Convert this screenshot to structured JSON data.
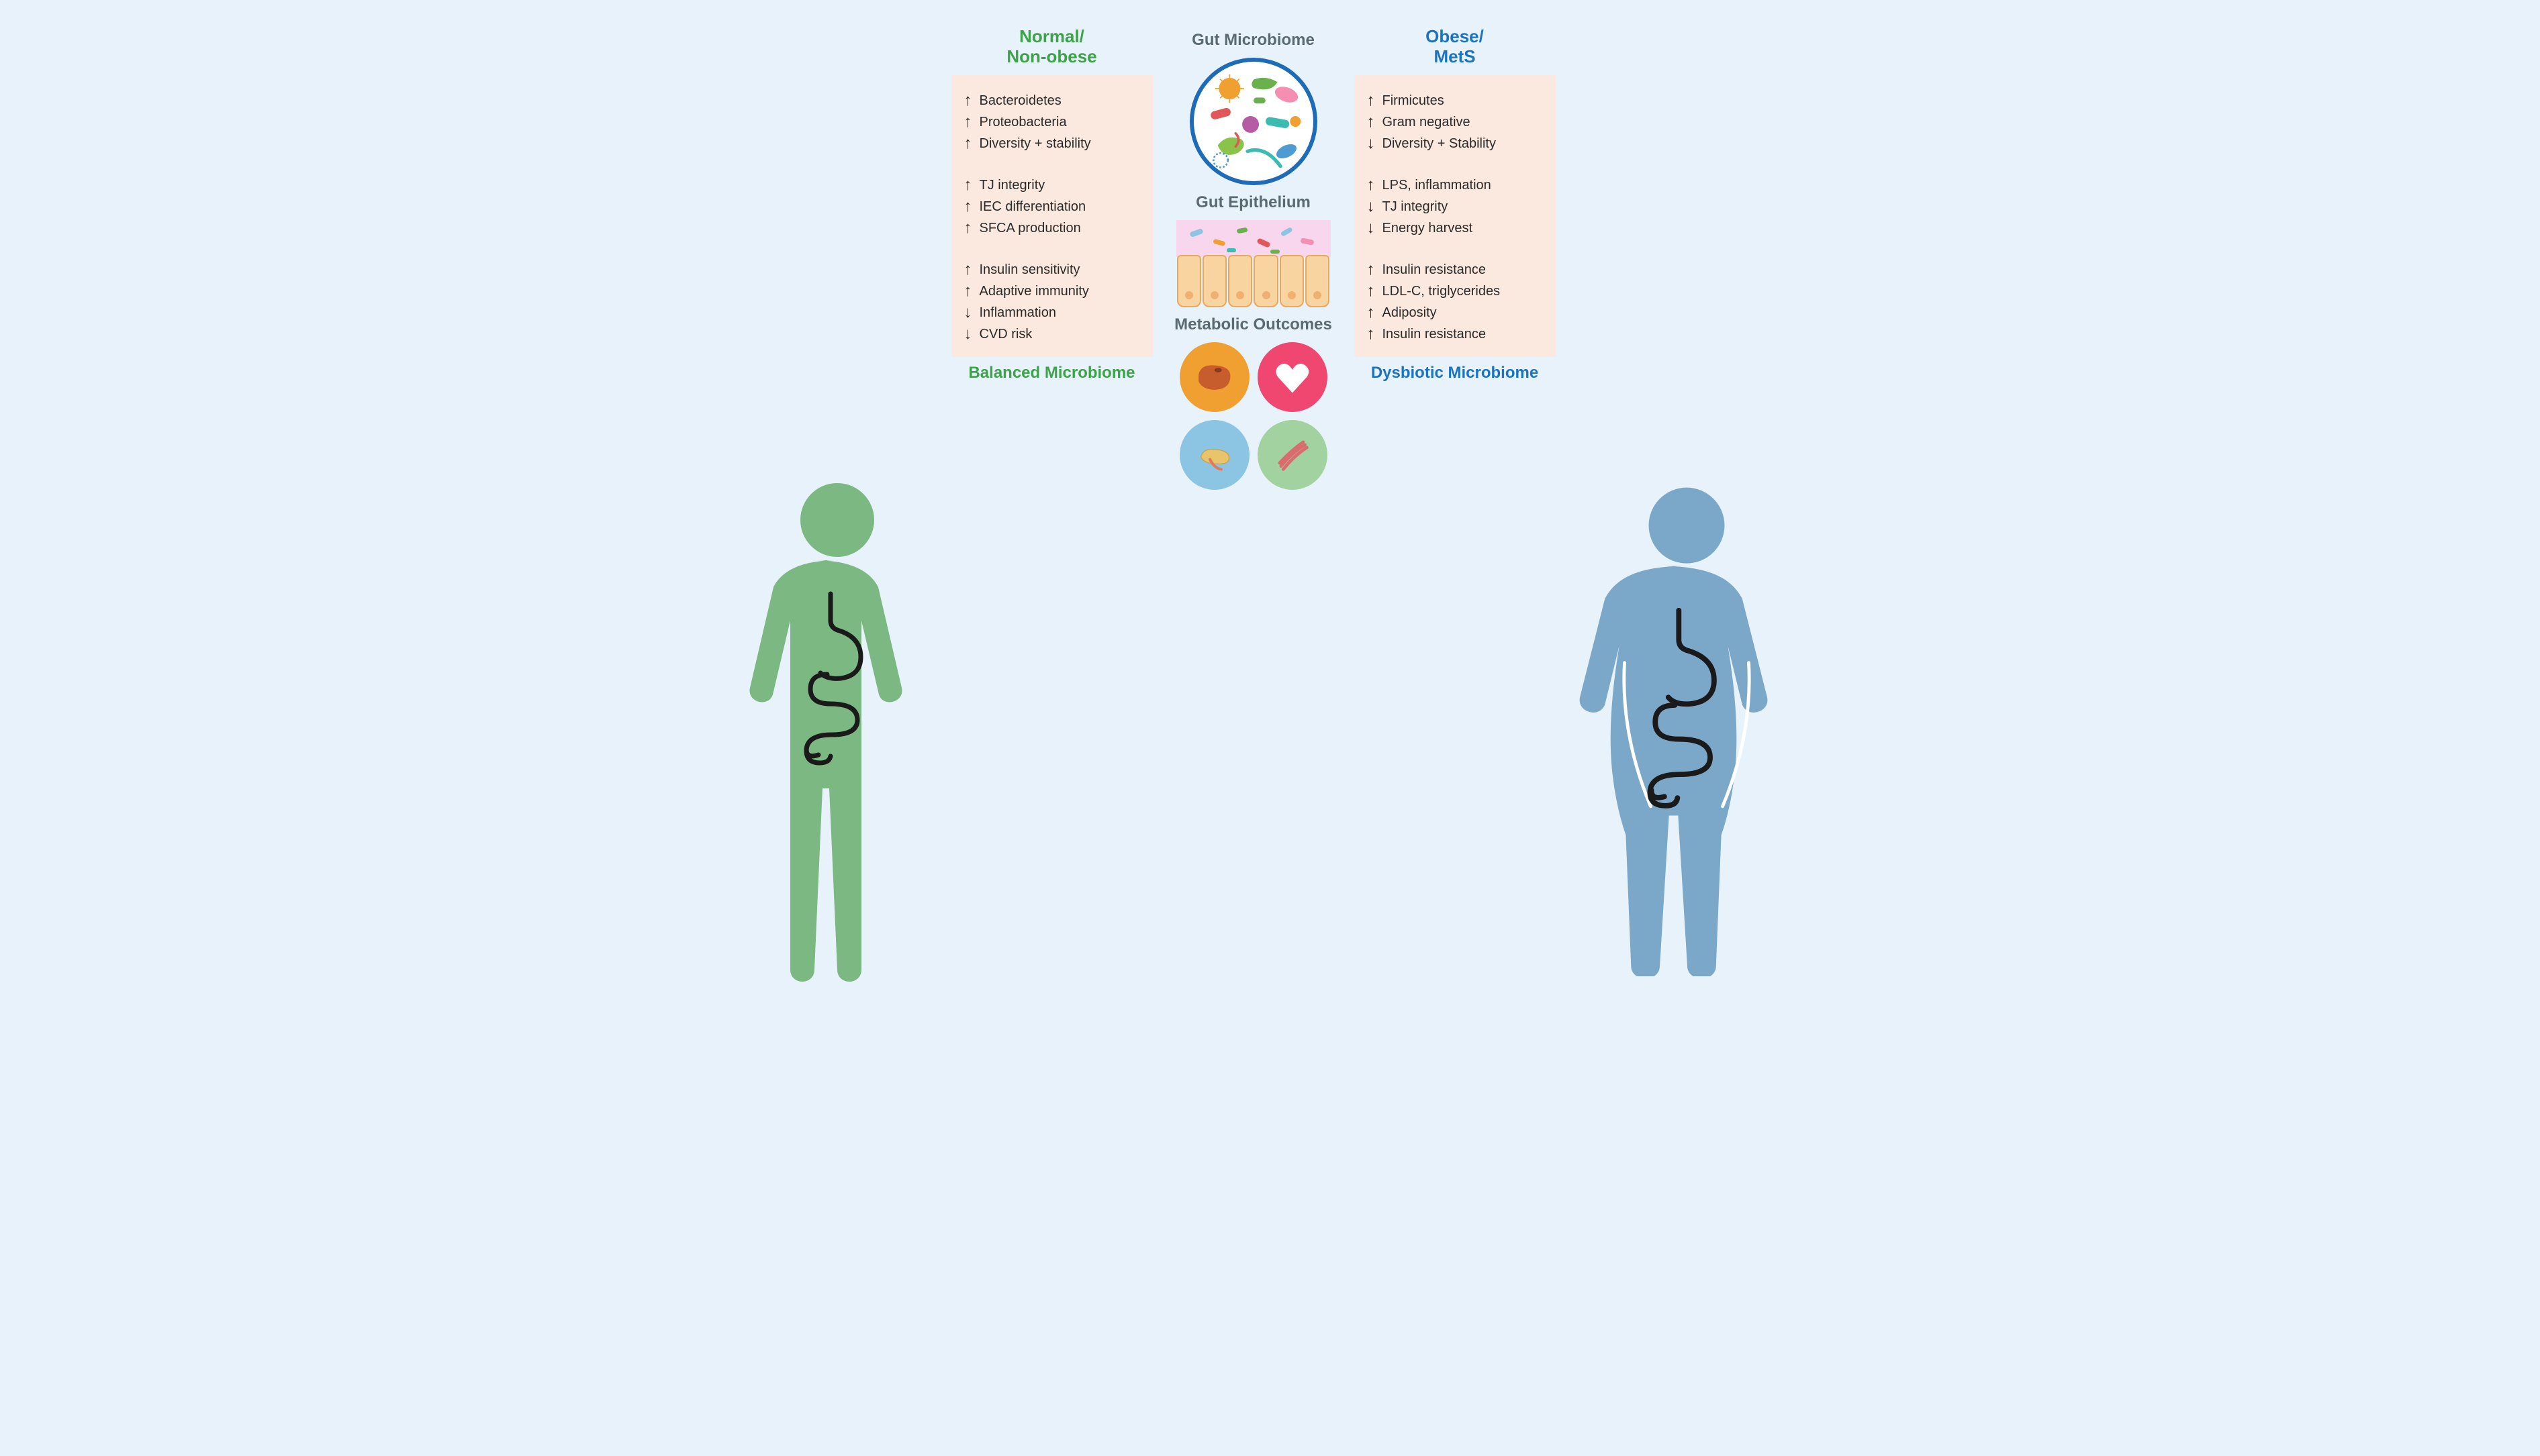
{
  "background_color": "#e8f2fa",
  "panel_background": "#fbe9df",
  "text_color": "#2a2a2a",
  "center_heading_color": "#5a6a72",
  "left": {
    "title_line1": "Normal/",
    "title_line2": "Non-obese",
    "title_color": "#3ea24a",
    "human_color": "#7cb882",
    "footer": "Balanced Microbiome",
    "groups": [
      {
        "items": [
          {
            "dir": "up",
            "label": "Bacteroidetes"
          },
          {
            "dir": "up",
            "label": "Proteobacteria"
          },
          {
            "dir": "up",
            "label": "Diversity + stability"
          }
        ]
      },
      {
        "items": [
          {
            "dir": "up",
            "label": "TJ integrity"
          },
          {
            "dir": "up",
            "label": "IEC differentiation"
          },
          {
            "dir": "up",
            "label": "SFCA production"
          }
        ]
      },
      {
        "items": [
          {
            "dir": "up",
            "label": "Insulin sensitivity"
          },
          {
            "dir": "up",
            "label": "Adaptive immunity"
          },
          {
            "dir": "down",
            "label": "Inflammation"
          },
          {
            "dir": "down",
            "label": "CVD risk"
          }
        ]
      }
    ]
  },
  "right": {
    "title_line1": "Obese/",
    "title_line2": "MetS",
    "title_color": "#1c74c1",
    "human_color": "#7ba8c9",
    "footer": "Dysbiotic Microbiome",
    "groups": [
      {
        "items": [
          {
            "dir": "up",
            "label": "Firmicutes"
          },
          {
            "dir": "up",
            "label": "Gram negative"
          },
          {
            "dir": "down",
            "label": "Diversity + Stability"
          }
        ]
      },
      {
        "items": [
          {
            "dir": "up",
            "label": "LPS, inflammation"
          },
          {
            "dir": "down",
            "label": "TJ integrity"
          },
          {
            "dir": "down",
            "label": "Energy harvest"
          }
        ]
      },
      {
        "items": [
          {
            "dir": "up",
            "label": "Insulin resistance"
          },
          {
            "dir": "up",
            "label": "LDL-C, triglycerides"
          },
          {
            "dir": "up",
            "label": "Adiposity"
          },
          {
            "dir": "up",
            "label": "Insulin resistance"
          }
        ]
      }
    ]
  },
  "center": {
    "section1": "Gut Microbiome",
    "section2": "Gut Epithelium",
    "section3": "Metabolic Outcomes",
    "microbe_circle_border": "#1e6bb8",
    "microbe_circle_bg": "#ffffff",
    "microbe_palette": [
      "#f0a030",
      "#6ab04c",
      "#e15759",
      "#4e9bd4",
      "#3cbbb1",
      "#b55ca5",
      "#8bc34a",
      "#f48fb1"
    ],
    "epithelium_lumen": "#f7d6ee",
    "epithelium_cell_fill": "#f8d4a0",
    "epithelium_cell_border": "#e9a85f",
    "epithelium_nucleus": "#f0b070",
    "organs": {
      "liver": {
        "bg": "#f0a030",
        "icon_color": "#c75d2c"
      },
      "heart": {
        "bg": "#ef476f",
        "icon_color": "#ffffff"
      },
      "pancreas": {
        "bg": "#8cc5e3",
        "icon_color": "#e9c46a",
        "accent": "#e07a5f"
      },
      "muscle": {
        "bg": "#a3d2a1",
        "icon_color": "#d96c6c"
      }
    }
  },
  "gi_tract_stroke": "#1a1a1a"
}
